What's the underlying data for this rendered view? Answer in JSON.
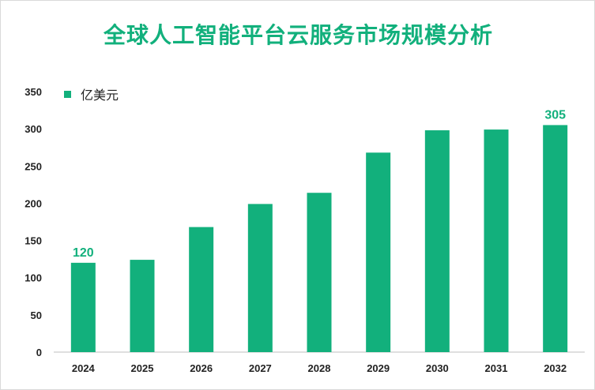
{
  "chart_data": {
    "type": "bar",
    "title": "全球人工智能平台云服务市场规模分析",
    "legend": "亿美元",
    "legend_position": "top-left",
    "categories": [
      "2024",
      "2025",
      "2026",
      "2027",
      "2028",
      "2029",
      "2030",
      "2031",
      "2032"
    ],
    "values": [
      120,
      124,
      168,
      199,
      214,
      268,
      298,
      299,
      305
    ],
    "data_labels": {
      "0": "120",
      "8": "305"
    },
    "ylim": [
      0,
      350
    ],
    "yticks": [
      0,
      50,
      100,
      150,
      200,
      250,
      300,
      350
    ],
    "grid": false,
    "bar_color": "#12b07c"
  }
}
